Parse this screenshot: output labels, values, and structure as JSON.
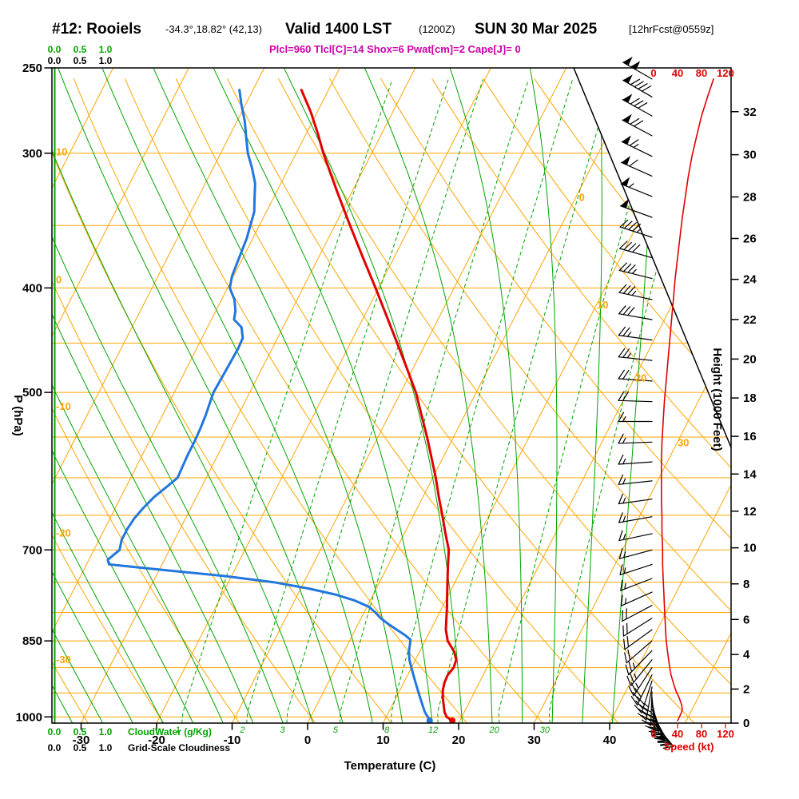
{
  "header": {
    "station": "#12: Rooiels",
    "coords": "-34.3°,18.82° (42,13)",
    "valid": "Valid 1400 LST",
    "valid_z": "(1200Z)",
    "date": "SUN 30 Mar 2025",
    "fcst": "[12hrFcst@0559z]",
    "params": "Plcl=960 Tlcl[C]=14 Shox=6 Pwat[cm]=2 Cape[J]= 0"
  },
  "axes": {
    "pressure_label": "P (hPa)",
    "temperature_label": "Temperature (C)",
    "height_label": "Height (1000 Feet)",
    "speed_label": "Speed (kt)",
    "cloudwater_label": "CloudWater (g/Kg)",
    "cloudiness_label": "Grid-Scale Cloudiness",
    "pressure_ticks": [
      250,
      300,
      400,
      500,
      700,
      850,
      1000
    ],
    "temperature_ticks": [
      -30,
      -20,
      -10,
      0,
      10,
      20,
      30,
      40
    ],
    "height_ticks": [
      0,
      2,
      4,
      6,
      8,
      10,
      12,
      14,
      16,
      18,
      20,
      22,
      24,
      26,
      28,
      30,
      32
    ],
    "speed_ticks": [
      0,
      40,
      80,
      120
    ],
    "cloud_scale_ticks": [
      "0.0",
      "0.5",
      "1.0"
    ]
  },
  "grid": {
    "isobars": [
      250,
      300,
      350,
      400,
      450,
      500,
      550,
      600,
      650,
      700,
      750,
      800,
      850,
      900,
      950,
      1000
    ],
    "isotherm_range": [
      -120,
      60
    ],
    "isotherm_step": 10,
    "isotherm_labels": [
      0,
      10,
      20,
      30
    ],
    "dry_adiabat_range": [
      -40,
      150
    ],
    "dry_adiabat_step": 10,
    "dry_adiabat_labels": [
      10,
      0,
      -10,
      -20,
      -30
    ],
    "moist_adiabat_range": [
      -52,
      40
    ],
    "moist_adiabat_step": 4,
    "mixing_ratio_lines": [
      1,
      2,
      3,
      5,
      8,
      12,
      20,
      30
    ]
  },
  "chart_data": {
    "type": "line",
    "subtype": "skew-t-log-p-sounding",
    "pressure_range_hPa": [
      1013,
      250
    ],
    "temperature_axis_C": [
      -30,
      40
    ],
    "height_axis_kft": [
      0,
      32
    ],
    "speed_axis_kt": [
      0,
      120
    ],
    "surface": {
      "pressure_hPa": 1008,
      "temperature_C": 19,
      "dewpoint_C": 16
    },
    "temperature_C": [
      [
        1008,
        19.0
      ],
      [
        1000,
        18.0
      ],
      [
        990,
        17.4
      ],
      [
        975,
        16.8
      ],
      [
        960,
        16.2
      ],
      [
        945,
        15.7
      ],
      [
        930,
        15.4
      ],
      [
        915,
        15.3
      ],
      [
        900,
        15.6
      ],
      [
        885,
        15.4
      ],
      [
        870,
        14.6
      ],
      [
        850,
        13.0
      ],
      [
        830,
        12.0
      ],
      [
        810,
        11.3
      ],
      [
        790,
        10.6
      ],
      [
        770,
        9.8
      ],
      [
        750,
        9.0
      ],
      [
        725,
        8.0
      ],
      [
        700,
        7.0
      ],
      [
        675,
        5.4
      ],
      [
        650,
        3.8
      ],
      [
        625,
        2.1
      ],
      [
        600,
        0.4
      ],
      [
        575,
        -1.5
      ],
      [
        550,
        -3.5
      ],
      [
        525,
        -5.7
      ],
      [
        500,
        -8.0
      ],
      [
        475,
        -10.8
      ],
      [
        450,
        -13.8
      ],
      [
        425,
        -17.0
      ],
      [
        400,
        -20.4
      ],
      [
        375,
        -24.1
      ],
      [
        350,
        -28.0
      ],
      [
        325,
        -32.1
      ],
      [
        300,
        -36.4
      ],
      [
        288,
        -38.4
      ],
      [
        275,
        -40.8
      ],
      [
        262,
        -43.6
      ]
    ],
    "dewpoint_C": [
      [
        1008,
        16.0
      ],
      [
        1000,
        15.5
      ],
      [
        990,
        14.8
      ],
      [
        975,
        14.0
      ],
      [
        960,
        13.2
      ],
      [
        945,
        12.4
      ],
      [
        930,
        11.6
      ],
      [
        915,
        10.8
      ],
      [
        900,
        10.0
      ],
      [
        885,
        9.2
      ],
      [
        870,
        8.6
      ],
      [
        855,
        8.2
      ],
      [
        848,
        8.0
      ],
      [
        840,
        7.0
      ],
      [
        830,
        5.5
      ],
      [
        820,
        4.0
      ],
      [
        810,
        2.6
      ],
      [
        800,
        1.5
      ],
      [
        790,
        0.2
      ],
      [
        780,
        -2.0
      ],
      [
        770,
        -5.0
      ],
      [
        760,
        -9.0
      ],
      [
        750,
        -14.0
      ],
      [
        740,
        -21.0
      ],
      [
        730,
        -30.0
      ],
      [
        722,
        -37.0
      ],
      [
        715,
        -37.5
      ],
      [
        700,
        -36.6
      ],
      [
        685,
        -37.0
      ],
      [
        670,
        -37.0
      ],
      [
        655,
        -36.8
      ],
      [
        640,
        -36.3
      ],
      [
        625,
        -35.6
      ],
      [
        610,
        -34.5
      ],
      [
        600,
        -33.8
      ],
      [
        585,
        -33.9
      ],
      [
        570,
        -34.0
      ],
      [
        555,
        -34.0
      ],
      [
        540,
        -34.1
      ],
      [
        525,
        -34.3
      ],
      [
        510,
        -34.6
      ],
      [
        500,
        -34.8
      ],
      [
        485,
        -34.7
      ],
      [
        470,
        -34.6
      ],
      [
        455,
        -34.5
      ],
      [
        445,
        -34.6
      ],
      [
        435,
        -35.5
      ],
      [
        428,
        -37.0
      ],
      [
        420,
        -37.4
      ],
      [
        410,
        -38.3
      ],
      [
        400,
        -39.7
      ],
      [
        390,
        -40.2
      ],
      [
        375,
        -40.5
      ],
      [
        360,
        -40.8
      ],
      [
        350,
        -41.2
      ],
      [
        340,
        -41.6
      ],
      [
        330,
        -42.5
      ],
      [
        320,
        -43.4
      ],
      [
        310,
        -44.8
      ],
      [
        300,
        -46.4
      ],
      [
        290,
        -47.7
      ],
      [
        280,
        -49.0
      ],
      [
        270,
        -50.6
      ],
      [
        262,
        -51.8
      ]
    ],
    "wind_p_dir_kt": [
      [
        1008,
        140,
        40
      ],
      [
        1000,
        146,
        43
      ],
      [
        992,
        151,
        46
      ],
      [
        984,
        157,
        48
      ],
      [
        976,
        162,
        47
      ],
      [
        968,
        168,
        45
      ],
      [
        958,
        175,
        42
      ],
      [
        948,
        182,
        38
      ],
      [
        938,
        190,
        35
      ],
      [
        926,
        198,
        32
      ],
      [
        914,
        206,
        29
      ],
      [
        900,
        213,
        27
      ],
      [
        885,
        219,
        25
      ],
      [
        868,
        224,
        23
      ],
      [
        850,
        229,
        21
      ],
      [
        830,
        234,
        20
      ],
      [
        810,
        238,
        19
      ],
      [
        788,
        242,
        18
      ],
      [
        766,
        246,
        17
      ],
      [
        744,
        249,
        16
      ],
      [
        722,
        252,
        15
      ],
      [
        700,
        255,
        15
      ],
      [
        676,
        258,
        14
      ],
      [
        652,
        260,
        14
      ],
      [
        628,
        262,
        13
      ],
      [
        604,
        264,
        13
      ],
      [
        580,
        266,
        13
      ],
      [
        556,
        268,
        14
      ],
      [
        532,
        270,
        16
      ],
      [
        510,
        272,
        18
      ],
      [
        488,
        274,
        21
      ],
      [
        467,
        276,
        24
      ],
      [
        447,
        278,
        27
      ],
      [
        428,
        280,
        30
      ],
      [
        410,
        282,
        33
      ],
      [
        392,
        284,
        36
      ],
      [
        375,
        286,
        40
      ],
      [
        359,
        288,
        44
      ],
      [
        344,
        290,
        48
      ],
      [
        329,
        292,
        53
      ],
      [
        315,
        294,
        58
      ],
      [
        302,
        296,
        64
      ],
      [
        289,
        298,
        72
      ],
      [
        277,
        299,
        80
      ],
      [
        266,
        300,
        90
      ],
      [
        256,
        300,
        100
      ]
    ]
  },
  "colors": {
    "grid_orange": "#FFA500",
    "adiabat_green": "#00A400",
    "temperature_red": "#E10000",
    "dewpoint_blue": "#2277DD",
    "params_magenta": "#CC00AA",
    "wind_black": "#000000",
    "speed_red": "#E10000"
  }
}
